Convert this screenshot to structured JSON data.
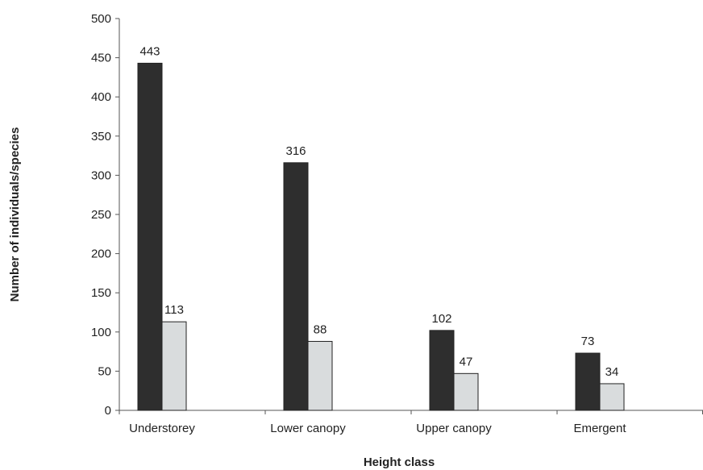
{
  "chart_data": {
    "type": "bar",
    "title": "",
    "xlabel": "Height class",
    "ylabel": "Number of individuals/species",
    "categories": [
      "Understorey",
      "Lower canopy",
      "Upper canopy",
      "Emergent"
    ],
    "series": [
      {
        "values": [
          443,
          316,
          102,
          73
        ],
        "color": "#2e2e2e"
      },
      {
        "values": [
          113,
          88,
          47,
          34
        ],
        "color": "#d9dcdd"
      }
    ],
    "ylim": [
      0,
      500
    ],
    "yticks": [
      0,
      50,
      100,
      150,
      200,
      250,
      300,
      350,
      400,
      450,
      500
    ],
    "grid": false,
    "legend": "none"
  }
}
